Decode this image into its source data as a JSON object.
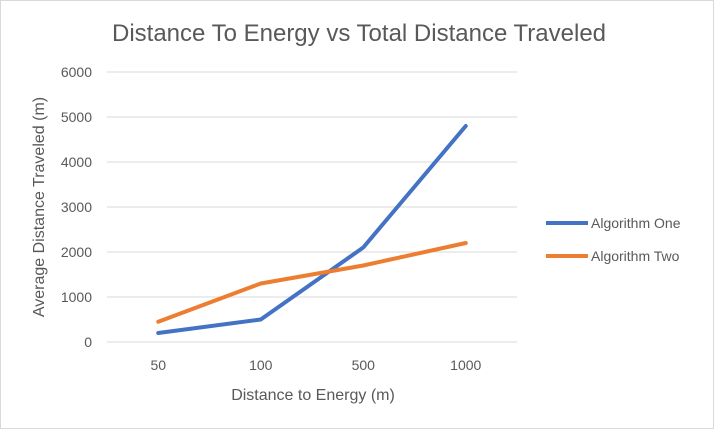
{
  "chart_data": {
    "type": "line",
    "title": "Distance To Energy vs Total Distance Traveled",
    "xlabel": "Distance to Energy (m)",
    "ylabel": "Average Distance Traveled (m)",
    "categories": [
      "50",
      "100",
      "500",
      "1000"
    ],
    "ylim": [
      0,
      6000
    ],
    "yticks": [
      0,
      1000,
      2000,
      3000,
      4000,
      5000,
      6000
    ],
    "grid": true,
    "legend_position": "right",
    "series": [
      {
        "name": "Algorithm One",
        "color": "#4472C4",
        "values": [
          200,
          500,
          2100,
          4800
        ]
      },
      {
        "name": "Algorithm Two",
        "color": "#ED7D31",
        "values": [
          450,
          1300,
          1700,
          2200
        ]
      }
    ]
  }
}
